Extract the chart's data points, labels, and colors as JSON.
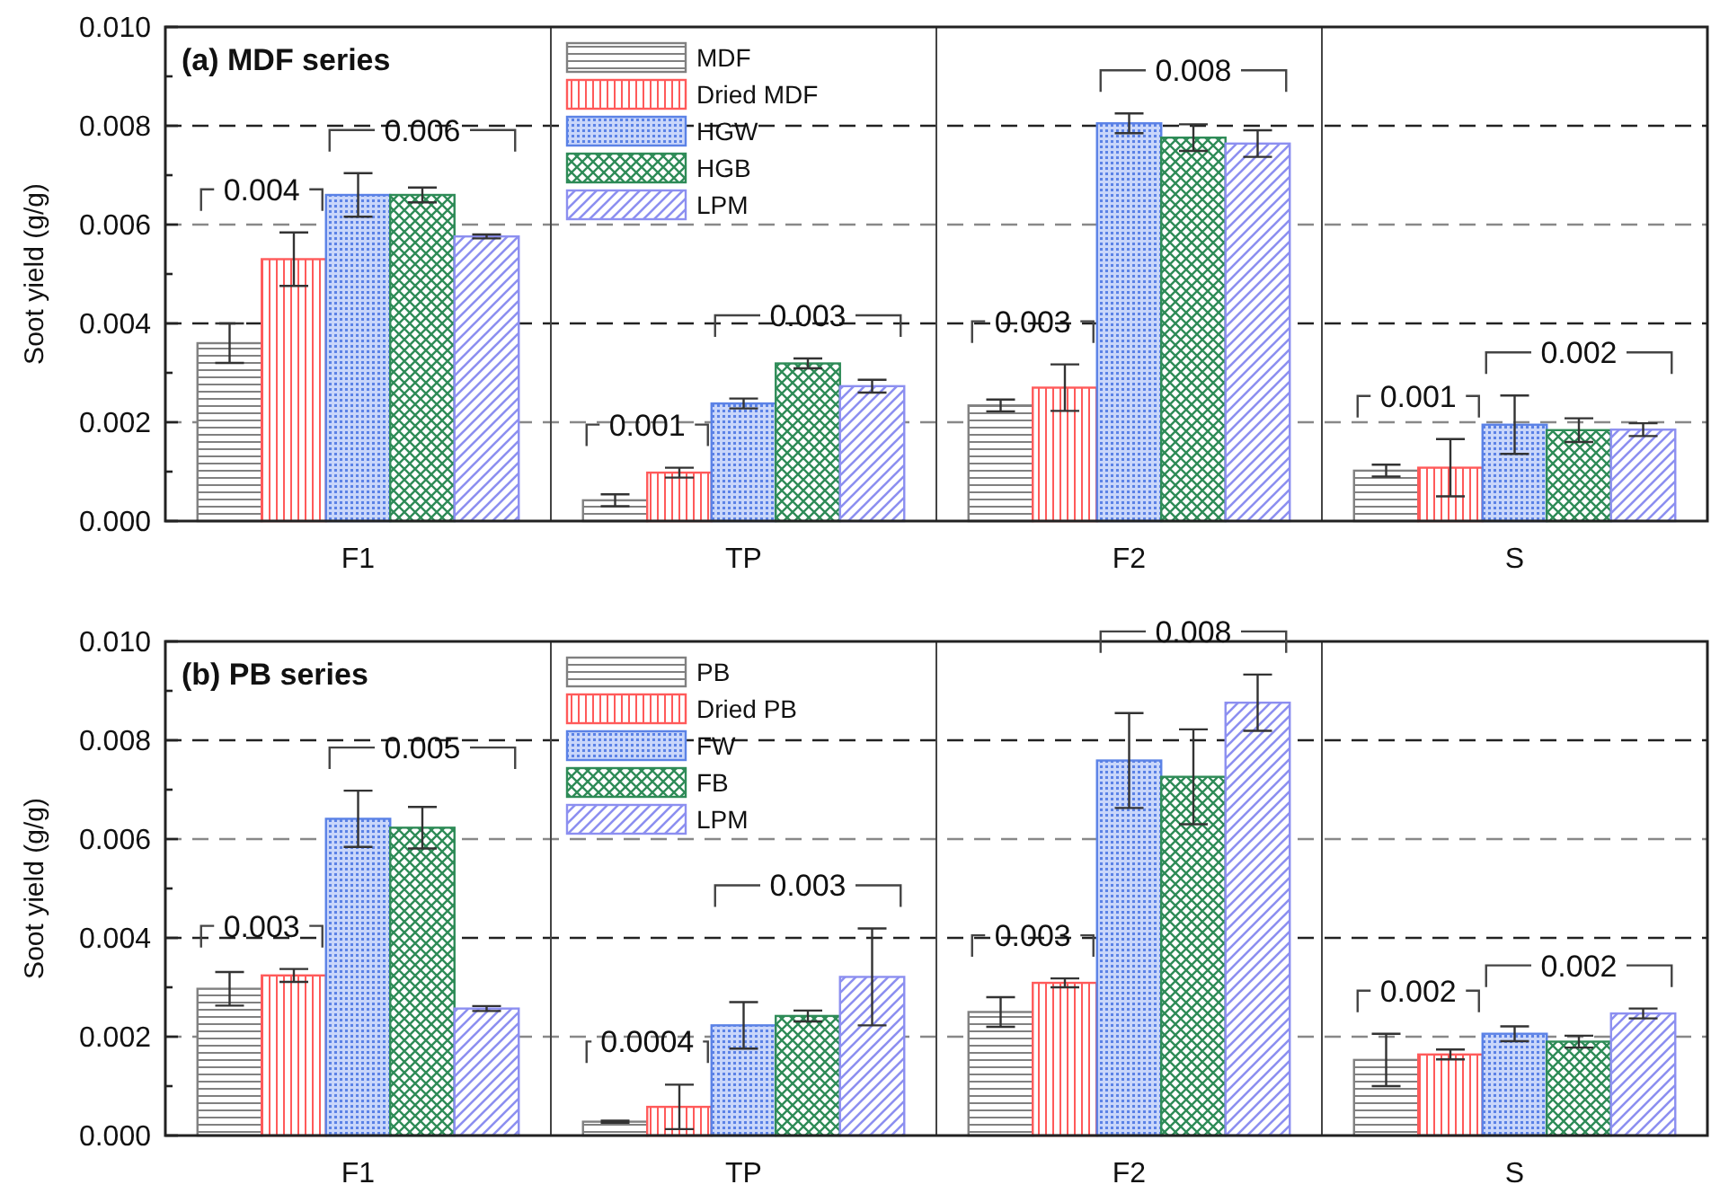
{
  "chart_data": [
    {
      "type": "bar",
      "title": "(a) MDF series",
      "ylabel": "Soot yield (g/g)",
      "categories": [
        "F1",
        "TP",
        "F2",
        "S"
      ],
      "ylim": [
        0,
        0.01
      ],
      "yticks": [
        {
          "value": 0,
          "label": "0.000"
        },
        {
          "value": 0.001,
          "label": null
        },
        {
          "value": 0.002,
          "label": "0.002"
        },
        {
          "value": 0.003,
          "label": null
        },
        {
          "value": 0.004,
          "label": "0.004"
        },
        {
          "value": 0.005,
          "label": null
        },
        {
          "value": 0.006,
          "label": "0.006"
        },
        {
          "value": 0.007,
          "label": null
        },
        {
          "value": 0.008,
          "label": "0.008"
        },
        {
          "value": 0.009,
          "label": null
        },
        {
          "value": 0.01,
          "label": "0.010"
        }
      ],
      "grid": "y",
      "legend": "top left",
      "series": [
        {
          "name": "MDF",
          "color": "#808080",
          "values": [
            0.0036,
            0.00042,
            0.00234,
            0.00102
          ],
          "errors": [
            0.0004,
            0.00012,
            0.00012,
            0.00012
          ]
        },
        {
          "name": "Dried MDF",
          "color": "#ff5a5a",
          "values": [
            0.0053,
            0.00098,
            0.0027,
            0.00108
          ],
          "errors": [
            0.00054,
            0.0001,
            0.00047,
            0.00058
          ]
        },
        {
          "name": "HGW",
          "color": "#5b82e6",
          "values": [
            0.0066,
            0.00238,
            0.00805,
            0.00195
          ],
          "errors": [
            0.00044,
            0.0001,
            0.0002,
            0.00059
          ]
        },
        {
          "name": "HGB",
          "color": "#2e8b57",
          "values": [
            0.0066,
            0.00319,
            0.00776,
            0.00184
          ],
          "errors": [
            0.00015,
            0.0001,
            0.00027,
            0.00024
          ]
        },
        {
          "name": "LPM",
          "color": "#8c8ff0",
          "values": [
            0.00576,
            0.00273,
            0.00764,
            0.00185
          ],
          "errors": [
            4e-05,
            0.00013,
            0.00027,
            0.00013
          ]
        }
      ],
      "annotations": [
        "0.004",
        "0.006",
        "0.001",
        "0.003",
        "0.003",
        "0.008",
        "0.001",
        "0.002"
      ]
    },
    {
      "type": "bar",
      "title": "(b) PB series",
      "ylabel": "Soot yield (g/g)",
      "categories": [
        "F1",
        "TP",
        "F2",
        "S"
      ],
      "ylim": [
        0,
        0.01
      ],
      "yticks": [
        {
          "value": 0,
          "label": "0.000"
        },
        {
          "value": 0.001,
          "label": null
        },
        {
          "value": 0.002,
          "label": "0.002"
        },
        {
          "value": 0.003,
          "label": null
        },
        {
          "value": 0.004,
          "label": "0.004"
        },
        {
          "value": 0.005,
          "label": null
        },
        {
          "value": 0.006,
          "label": "0.006"
        },
        {
          "value": 0.007,
          "label": null
        },
        {
          "value": 0.008,
          "label": "0.008"
        },
        {
          "value": 0.009,
          "label": null
        },
        {
          "value": 0.01,
          "label": "0.010"
        }
      ],
      "grid": "y",
      "legend": "top left",
      "series": [
        {
          "name": "PB",
          "color": "#808080",
          "values": [
            0.00297,
            0.00028,
            0.0025,
            0.00153
          ],
          "errors": [
            0.00034,
            2e-05,
            0.0003,
            0.00053
          ]
        },
        {
          "name": "Dried PB",
          "color": "#ff5a5a",
          "values": [
            0.00324,
            0.00058,
            0.00309,
            0.00164
          ],
          "errors": [
            0.00013,
            0.00045,
            9e-05,
            0.0001
          ]
        },
        {
          "name": "FW",
          "color": "#5b82e6",
          "values": [
            0.00641,
            0.00223,
            0.00759,
            0.00206
          ],
          "errors": [
            0.00057,
            0.00047,
            0.00096,
            0.00015
          ]
        },
        {
          "name": "FB",
          "color": "#2e8b57",
          "values": [
            0.00623,
            0.00242,
            0.00726,
            0.0019
          ],
          "errors": [
            0.00042,
            0.00011,
            0.00096,
            0.00012
          ]
        },
        {
          "name": "LPM",
          "color": "#8c8ff0",
          "values": [
            0.00257,
            0.00321,
            0.00876,
            0.00247
          ],
          "errors": [
            5e-05,
            0.00098,
            0.00057,
            0.0001
          ]
        }
      ],
      "annotations": [
        "0.003",
        "0.005",
        "0.0004",
        "0.003",
        "0.003",
        "0.008",
        "0.002",
        "0.002"
      ]
    }
  ]
}
